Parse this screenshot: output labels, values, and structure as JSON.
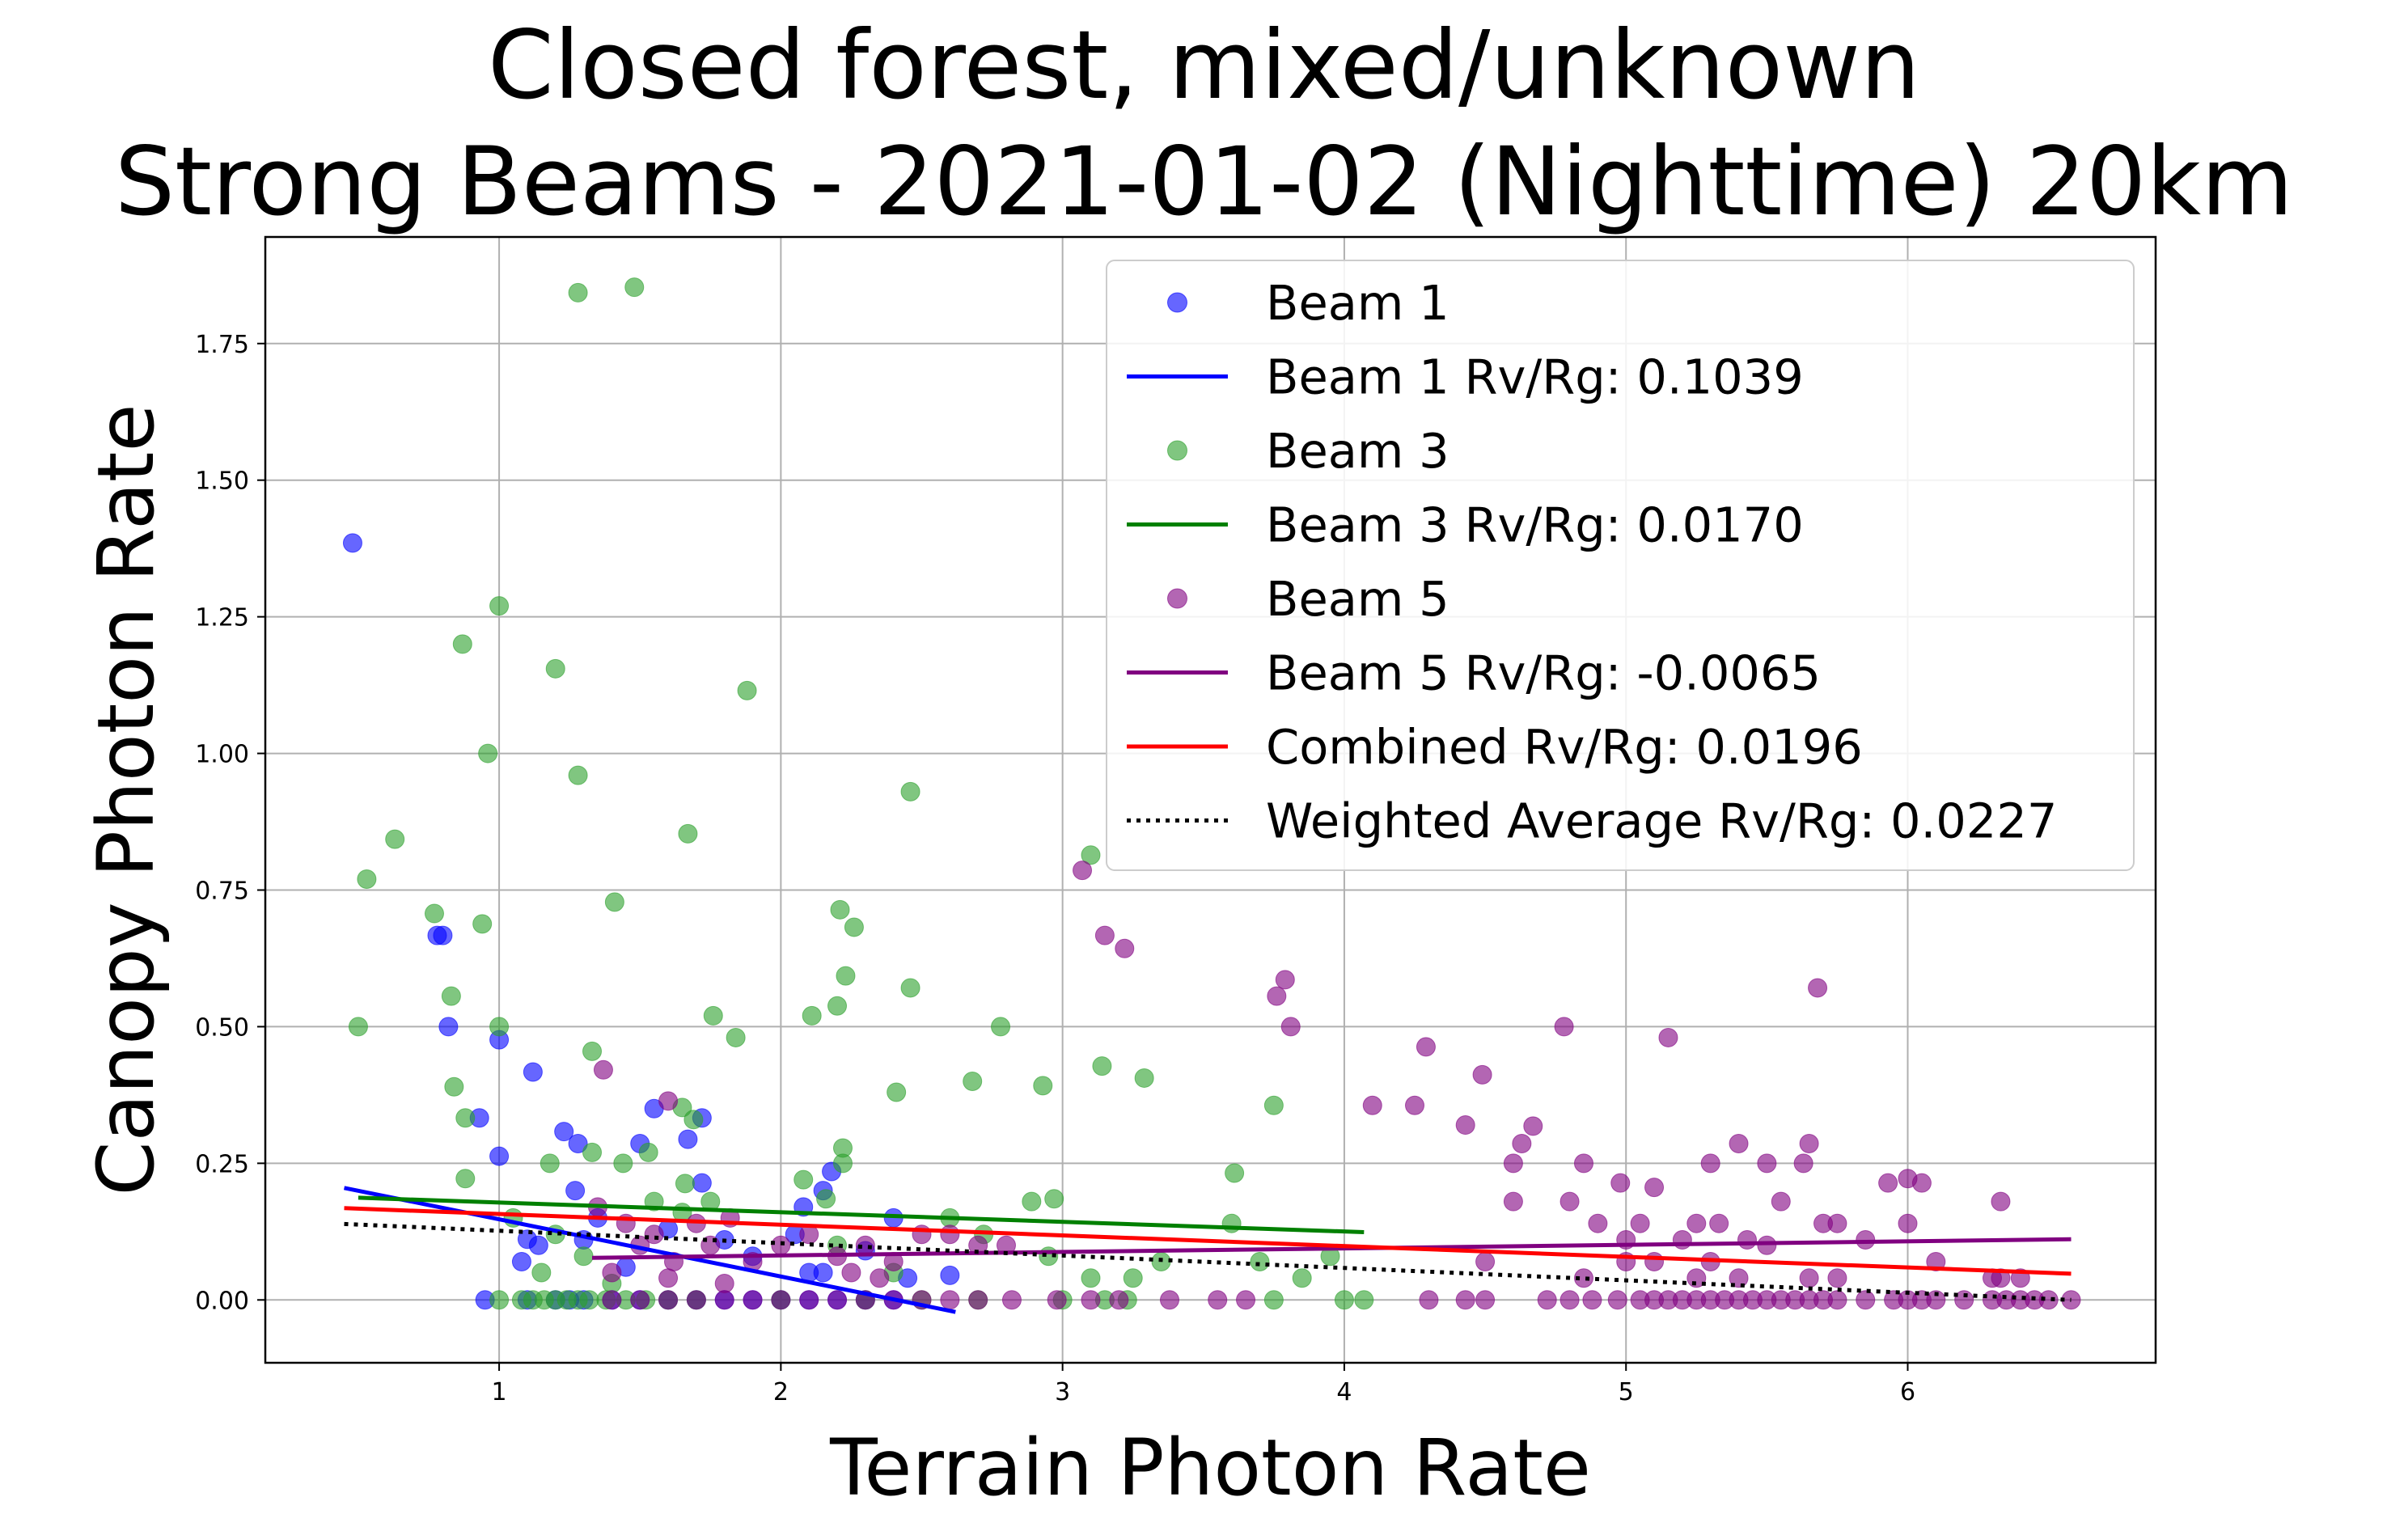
{
  "chart_data": {
    "type": "scatter",
    "title_lines": [
      "Closed forest, mixed/unknown",
      "Strong Beams - 2021-01-02 (Nighttime) 20km"
    ],
    "xlabel": "Terrain Photon Rate",
    "ylabel": "Canopy Photon Rate",
    "xlim": [
      0.17,
      6.88
    ],
    "ylim": [
      -0.115,
      1.945
    ],
    "xticks": [
      1,
      2,
      3,
      4,
      5,
      6
    ],
    "xtick_labels": [
      "1",
      "2",
      "3",
      "4",
      "5",
      "6"
    ],
    "yticks": [
      0,
      0.25,
      0.5,
      0.75,
      1.0,
      1.25,
      1.5,
      1.75
    ],
    "ytick_labels": [
      "0.00",
      "0.25",
      "0.50",
      "0.75",
      "1.00",
      "1.25",
      "1.50",
      "1.75"
    ],
    "grid": true,
    "legend_position": "upper right",
    "series": [
      {
        "name": "Beam 1",
        "kind": "scatter",
        "color": "#0000ff",
        "points": [
          [
            0.48,
            1.385
          ],
          [
            0.78,
            0.667
          ],
          [
            0.8,
            0.667
          ],
          [
            0.82,
            0.5
          ],
          [
            0.93,
            0.333
          ],
          [
            1.0,
            0.476
          ],
          [
            1.0,
            0.263
          ],
          [
            1.12,
            0.417
          ],
          [
            1.23,
            0.308
          ],
          [
            1.28,
            0.286
          ],
          [
            1.55,
            0.35
          ],
          [
            1.67,
            0.294
          ],
          [
            1.72,
            0.333
          ],
          [
            1.72,
            0.214
          ],
          [
            1.27,
            0.2
          ],
          [
            1.35,
            0.15
          ],
          [
            1.5,
            0.286
          ],
          [
            1.1,
            0.111
          ],
          [
            1.14,
            0.1
          ],
          [
            1.08,
            0.07
          ],
          [
            1.3,
            0.11
          ],
          [
            1.45,
            0.06
          ],
          [
            1.6,
            0.13
          ],
          [
            1.8,
            0.11
          ],
          [
            1.9,
            0.08
          ],
          [
            2.05,
            0.12
          ],
          [
            2.08,
            0.17
          ],
          [
            2.15,
            0.2
          ],
          [
            2.18,
            0.235
          ],
          [
            2.1,
            0.05
          ],
          [
            2.15,
            0.05
          ],
          [
            2.4,
            0.15
          ],
          [
            2.45,
            0.04
          ],
          [
            2.6,
            0.045
          ],
          [
            2.3,
            0.09
          ],
          [
            0.95,
            0.0
          ],
          [
            1.1,
            0.0
          ],
          [
            1.2,
            0.0
          ],
          [
            1.25,
            0.0
          ],
          [
            1.3,
            0.0
          ],
          [
            1.4,
            0.0
          ],
          [
            1.5,
            0.0
          ],
          [
            1.6,
            0.0
          ],
          [
            1.7,
            0.0
          ],
          [
            1.8,
            0.0
          ],
          [
            1.9,
            0.0
          ],
          [
            2.0,
            0.0
          ],
          [
            2.1,
            0.0
          ],
          [
            2.2,
            0.0
          ],
          [
            2.3,
            0.0
          ],
          [
            2.4,
            0.0
          ]
        ]
      },
      {
        "name": "Beam 1 Rv/Rg: 0.1039",
        "kind": "line",
        "color": "#0000ff",
        "dash": "solid",
        "x": [
          0.45,
          2.62
        ],
        "y": [
          0.205,
          -0.022
        ]
      },
      {
        "name": "Beam 3",
        "kind": "scatter",
        "color": "#2ca02c",
        "points": [
          [
            1.28,
            1.843
          ],
          [
            1.48,
            1.853
          ],
          [
            1.0,
            1.27
          ],
          [
            0.87,
            1.2
          ],
          [
            1.2,
            1.155
          ],
          [
            1.88,
            1.115
          ],
          [
            0.96,
            1.0
          ],
          [
            1.28,
            0.96
          ],
          [
            2.46,
            0.93
          ],
          [
            1.67,
            0.853
          ],
          [
            0.63,
            0.843
          ],
          [
            0.53,
            0.77
          ],
          [
            0.77,
            0.707
          ],
          [
            0.94,
            0.688
          ],
          [
            1.41,
            0.728
          ],
          [
            2.21,
            0.714
          ],
          [
            2.26,
            0.682
          ],
          [
            3.1,
            0.814
          ],
          [
            0.5,
            0.5
          ],
          [
            0.83,
            0.556
          ],
          [
            1.0,
            0.5
          ],
          [
            2.23,
            0.593
          ],
          [
            2.46,
            0.571
          ],
          [
            2.2,
            0.538
          ],
          [
            1.76,
            0.52
          ],
          [
            1.84,
            0.48
          ],
          [
            2.11,
            0.52
          ],
          [
            2.78,
            0.5
          ],
          [
            1.33,
            0.455
          ],
          [
            0.84,
            0.39
          ],
          [
            2.68,
            0.4
          ],
          [
            2.41,
            0.38
          ],
          [
            2.93,
            0.392
          ],
          [
            3.14,
            0.428
          ],
          [
            3.29,
            0.406
          ],
          [
            3.75,
            0.356
          ],
          [
            0.88,
            0.333
          ],
          [
            1.65,
            0.352
          ],
          [
            1.69,
            0.33
          ],
          [
            1.18,
            0.25
          ],
          [
            1.44,
            0.25
          ],
          [
            1.53,
            0.27
          ],
          [
            2.22,
            0.25
          ],
          [
            2.22,
            0.278
          ],
          [
            0.88,
            0.222
          ],
          [
            1.66,
            0.213
          ],
          [
            1.75,
            0.18
          ],
          [
            2.08,
            0.22
          ],
          [
            2.16,
            0.185
          ],
          [
            2.89,
            0.18
          ],
          [
            2.97,
            0.185
          ],
          [
            3.61,
            0.232
          ],
          [
            1.05,
            0.15
          ],
          [
            1.2,
            0.12
          ],
          [
            1.33,
            0.27
          ],
          [
            1.55,
            0.18
          ],
          [
            1.65,
            0.16
          ],
          [
            2.6,
            0.15
          ],
          [
            2.72,
            0.12
          ],
          [
            2.95,
            0.08
          ],
          [
            3.1,
            0.04
          ],
          [
            3.25,
            0.04
          ],
          [
            3.35,
            0.07
          ],
          [
            3.6,
            0.14
          ],
          [
            3.7,
            0.07
          ],
          [
            3.85,
            0.04
          ],
          [
            3.95,
            0.08
          ],
          [
            1.15,
            0.05
          ],
          [
            1.3,
            0.08
          ],
          [
            1.4,
            0.03
          ],
          [
            2.2,
            0.1
          ],
          [
            2.4,
            0.05
          ],
          [
            1.0,
            0.0
          ],
          [
            1.08,
            0.0
          ],
          [
            1.12,
            0.0
          ],
          [
            1.16,
            0.0
          ],
          [
            1.2,
            0.0
          ],
          [
            1.24,
            0.0
          ],
          [
            1.28,
            0.0
          ],
          [
            1.32,
            0.0
          ],
          [
            1.38,
            0.0
          ],
          [
            1.45,
            0.0
          ],
          [
            1.52,
            0.0
          ],
          [
            1.6,
            0.0
          ],
          [
            1.7,
            0.0
          ],
          [
            2.0,
            0.0
          ],
          [
            2.3,
            0.0
          ],
          [
            2.5,
            0.0
          ],
          [
            2.7,
            0.0
          ],
          [
            3.0,
            0.0
          ],
          [
            3.15,
            0.0
          ],
          [
            3.23,
            0.0
          ],
          [
            3.75,
            0.0
          ],
          [
            4.0,
            0.0
          ],
          [
            4.07,
            0.0
          ]
        ]
      },
      {
        "name": "Beam 3 Rv/Rg: 0.0170",
        "kind": "line",
        "color": "#008000",
        "dash": "solid",
        "x": [
          0.5,
          4.07
        ],
        "y": [
          0.187,
          0.124
        ]
      },
      {
        "name": "Beam 5",
        "kind": "scatter",
        "color": "#800080",
        "points": [
          [
            3.07,
            0.786
          ],
          [
            3.15,
            0.667
          ],
          [
            3.22,
            0.643
          ],
          [
            3.79,
            0.586
          ],
          [
            3.76,
            0.556
          ],
          [
            3.81,
            0.5
          ],
          [
            4.78,
            0.5
          ],
          [
            5.15,
            0.48
          ],
          [
            5.68,
            0.571
          ],
          [
            4.29,
            0.463
          ],
          [
            4.49,
            0.412
          ],
          [
            4.1,
            0.356
          ],
          [
            4.25,
            0.356
          ],
          [
            4.43,
            0.32
          ],
          [
            4.67,
            0.318
          ],
          [
            4.63,
            0.286
          ],
          [
            1.37,
            0.421
          ],
          [
            1.6,
            0.364
          ],
          [
            4.6,
            0.25
          ],
          [
            4.8,
            0.18
          ],
          [
            4.85,
            0.25
          ],
          [
            4.98,
            0.214
          ],
          [
            5.1,
            0.206
          ],
          [
            5.3,
            0.25
          ],
          [
            5.4,
            0.286
          ],
          [
            5.5,
            0.25
          ],
          [
            5.55,
            0.18
          ],
          [
            5.63,
            0.25
          ],
          [
            5.65,
            0.286
          ],
          [
            5.93,
            0.214
          ],
          [
            6.0,
            0.222
          ],
          [
            6.05,
            0.214
          ],
          [
            6.33,
            0.18
          ],
          [
            4.6,
            0.18
          ],
          [
            4.9,
            0.14
          ],
          [
            5.0,
            0.11
          ],
          [
            5.05,
            0.14
          ],
          [
            5.2,
            0.11
          ],
          [
            5.25,
            0.14
          ],
          [
            5.33,
            0.14
          ],
          [
            5.43,
            0.11
          ],
          [
            5.5,
            0.1
          ],
          [
            5.7,
            0.14
          ],
          [
            5.75,
            0.14
          ],
          [
            5.85,
            0.11
          ],
          [
            6.0,
            0.14
          ],
          [
            6.1,
            0.07
          ],
          [
            6.3,
            0.04
          ],
          [
            4.85,
            0.04
          ],
          [
            5.0,
            0.07
          ],
          [
            5.1,
            0.07
          ],
          [
            5.25,
            0.04
          ],
          [
            5.3,
            0.07
          ],
          [
            5.4,
            0.04
          ],
          [
            5.65,
            0.04
          ],
          [
            5.75,
            0.04
          ],
          [
            6.33,
            0.04
          ],
          [
            6.4,
            0.04
          ],
          [
            4.5,
            0.07
          ],
          [
            1.35,
            0.17
          ],
          [
            1.45,
            0.14
          ],
          [
            1.5,
            0.1
          ],
          [
            1.55,
            0.12
          ],
          [
            1.62,
            0.07
          ],
          [
            1.7,
            0.14
          ],
          [
            1.75,
            0.1
          ],
          [
            1.82,
            0.15
          ],
          [
            1.9,
            0.07
          ],
          [
            2.0,
            0.1
          ],
          [
            2.1,
            0.12
          ],
          [
            2.2,
            0.08
          ],
          [
            2.3,
            0.1
          ],
          [
            2.4,
            0.07
          ],
          [
            2.5,
            0.12
          ],
          [
            2.6,
            0.12
          ],
          [
            2.7,
            0.1
          ],
          [
            2.8,
            0.1
          ],
          [
            1.4,
            0.05
          ],
          [
            1.6,
            0.04
          ],
          [
            1.8,
            0.03
          ],
          [
            2.25,
            0.05
          ],
          [
            2.35,
            0.04
          ],
          [
            1.4,
            0.0
          ],
          [
            1.5,
            0.0
          ],
          [
            1.6,
            0.0
          ],
          [
            1.7,
            0.0
          ],
          [
            1.8,
            0.0
          ],
          [
            1.9,
            0.0
          ],
          [
            2.0,
            0.0
          ],
          [
            2.1,
            0.0
          ],
          [
            2.2,
            0.0
          ],
          [
            2.3,
            0.0
          ],
          [
            2.4,
            0.0
          ],
          [
            2.5,
            0.0
          ],
          [
            2.6,
            0.0
          ],
          [
            2.7,
            0.0
          ],
          [
            2.82,
            0.0
          ],
          [
            2.98,
            0.0
          ],
          [
            3.1,
            0.0
          ],
          [
            3.2,
            0.0
          ],
          [
            3.38,
            0.0
          ],
          [
            3.55,
            0.0
          ],
          [
            3.65,
            0.0
          ],
          [
            4.3,
            0.0
          ],
          [
            4.43,
            0.0
          ],
          [
            4.5,
            0.0
          ],
          [
            4.72,
            0.0
          ],
          [
            4.8,
            0.0
          ],
          [
            4.88,
            0.0
          ],
          [
            4.97,
            0.0
          ],
          [
            5.05,
            0.0
          ],
          [
            5.1,
            0.0
          ],
          [
            5.15,
            0.0
          ],
          [
            5.2,
            0.0
          ],
          [
            5.25,
            0.0
          ],
          [
            5.3,
            0.0
          ],
          [
            5.35,
            0.0
          ],
          [
            5.4,
            0.0
          ],
          [
            5.45,
            0.0
          ],
          [
            5.5,
            0.0
          ],
          [
            5.55,
            0.0
          ],
          [
            5.6,
            0.0
          ],
          [
            5.65,
            0.0
          ],
          [
            5.7,
            0.0
          ],
          [
            5.75,
            0.0
          ],
          [
            5.85,
            0.0
          ],
          [
            5.95,
            0.0
          ],
          [
            6.0,
            0.0
          ],
          [
            6.05,
            0.0
          ],
          [
            6.1,
            0.0
          ],
          [
            6.2,
            0.0
          ],
          [
            6.3,
            0.0
          ],
          [
            6.35,
            0.0
          ],
          [
            6.4,
            0.0
          ],
          [
            6.45,
            0.0
          ],
          [
            6.5,
            0.0
          ],
          [
            6.58,
            0.0
          ]
        ]
      },
      {
        "name": "Beam 5 Rv/Rg: -0.0065",
        "kind": "line",
        "color": "#800080",
        "dash": "solid",
        "x": [
          1.33,
          6.58
        ],
        "y": [
          0.077,
          0.111
        ]
      },
      {
        "name": "Combined Rv/Rg: 0.0196",
        "kind": "line",
        "color": "#ff0000",
        "dash": "solid",
        "x": [
          0.45,
          6.58
        ],
        "y": [
          0.168,
          0.048
        ]
      },
      {
        "name": "Weighted Average Rv/Rg: 0.0227",
        "kind": "line",
        "color": "#000000",
        "dash": "dotted",
        "x": [
          0.45,
          6.58
        ],
        "y": [
          0.139,
          0.0
        ]
      }
    ]
  }
}
